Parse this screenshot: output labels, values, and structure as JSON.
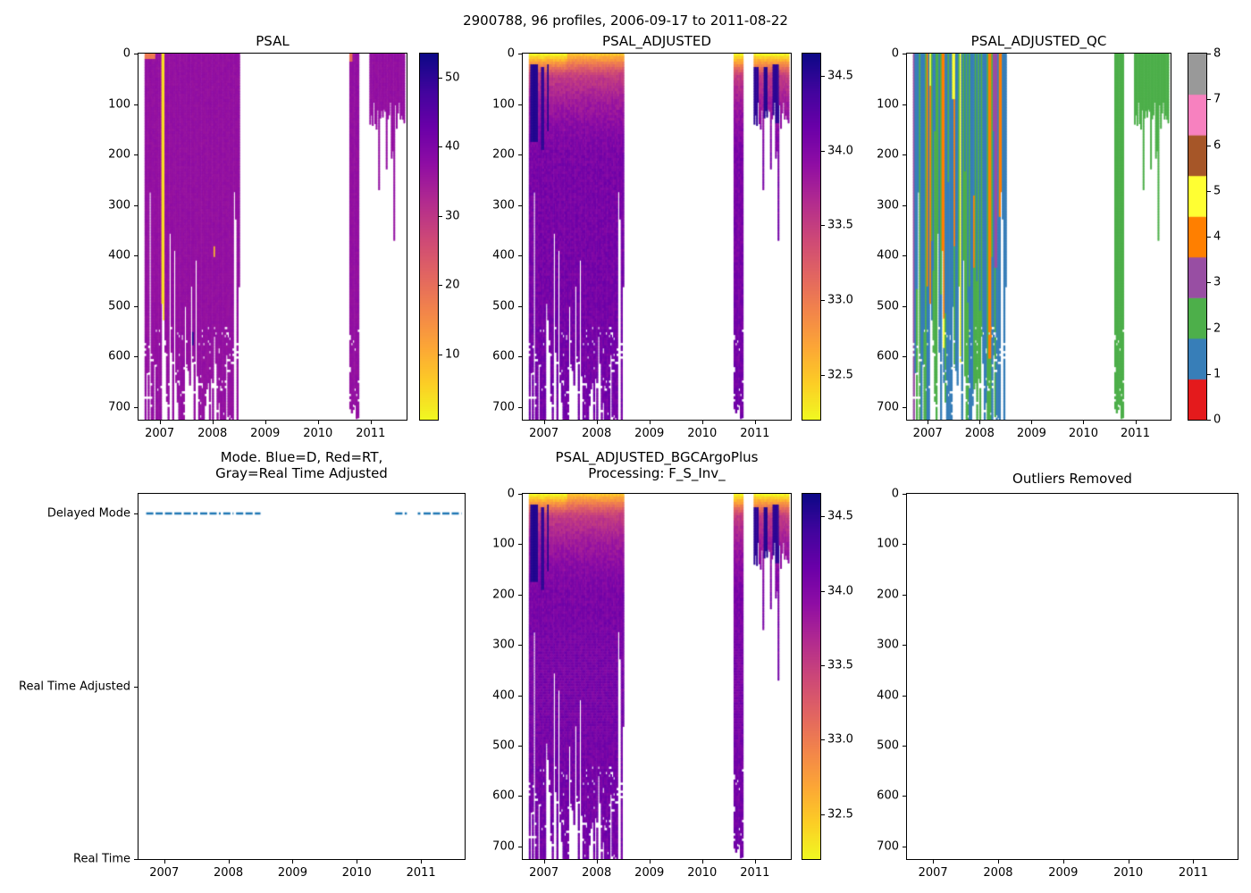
{
  "figure": {
    "suptitle": "2900788, 96 profiles, 2006-09-17 to 2011-08-22",
    "background": "#ffffff",
    "text_color": "#000000"
  },
  "colormaps": {
    "plasma": [
      "#0d0887",
      "#41049d",
      "#6a00a8",
      "#8f0da4",
      "#b12a90",
      "#cc4778",
      "#e16462",
      "#f2844b",
      "#fca636",
      "#fcce25",
      "#f0f921"
    ],
    "qc_flags": [
      "#e41a1c",
      "#377eb8",
      "#4daf4a",
      "#984ea3",
      "#ff7f00",
      "#ffff33",
      "#a65628",
      "#f781bf",
      "#999999"
    ]
  },
  "axes_common": {
    "xlim": [
      2006.6,
      2011.68
    ],
    "x_ticks": [
      "2007",
      "2008",
      "2009",
      "2010",
      "2011"
    ],
    "x_tick_values": [
      2007,
      2008,
      2009,
      2010,
      2011
    ],
    "depth_lim": [
      0,
      725
    ],
    "depth_ticks": [
      0,
      100,
      200,
      300,
      400,
      500,
      600,
      700
    ],
    "grid": false
  },
  "profile_clusters": [
    {
      "t_start": 2006.72,
      "t_end": 2008.52,
      "count": 62,
      "coverage": "full_ragged"
    },
    {
      "t_start": 2010.6,
      "t_end": 2010.78,
      "count": 6,
      "coverage": "full"
    },
    {
      "t_start": 2010.98,
      "t_end": 2011.65,
      "count": 28,
      "coverage": "shallow"
    }
  ],
  "chart_data": [
    {
      "id": "psal",
      "type": "heatmap",
      "title": "PSAL",
      "ylabel_unit": "depth",
      "colorbar": {
        "vmin": 0.5,
        "vmax": 53.5,
        "ticks": [
          10,
          20,
          30,
          40,
          50
        ],
        "format": "int",
        "colormap": "plasma_r"
      },
      "value_model": {
        "base": 36.9,
        "noise": 0.7
      },
      "anomalies": [
        {
          "t0": 2007.03,
          "t1": 2007.09,
          "d0": 0,
          "d1": 725,
          "value": 4
        },
        {
          "t0": 2007.19,
          "t1": 2007.23,
          "d0": 640,
          "d1": 725,
          "value": 7
        },
        {
          "t0": 2006.72,
          "t1": 2006.92,
          "d0": 0,
          "d1": 10,
          "value": 18
        },
        {
          "t0": 2007.6,
          "t1": 2007.64,
          "d0": 548,
          "d1": 576,
          "value": 52
        },
        {
          "t0": 2008.02,
          "t1": 2008.06,
          "d0": 378,
          "d1": 402,
          "value": 8
        },
        {
          "t0": 2010.6,
          "t1": 2010.66,
          "d0": 0,
          "d1": 12,
          "value": 20
        }
      ]
    },
    {
      "id": "psal_adjusted",
      "type": "heatmap",
      "title": "PSAL_ADJUSTED",
      "colorbar": {
        "vmin": 32.2,
        "vmax": 34.65,
        "ticks": [
          32.5,
          33.0,
          33.5,
          34.0,
          34.5
        ],
        "format": "1dp",
        "colormap": "plasma_r"
      },
      "value_model": {
        "profile_points": [
          [
            0,
            32.55
          ],
          [
            15,
            32.95
          ],
          [
            40,
            33.5
          ],
          [
            90,
            33.78
          ],
          [
            140,
            33.95
          ],
          [
            200,
            34.05
          ],
          [
            725,
            34.1
          ]
        ],
        "noise": 0.09,
        "fresh_periods": [
          [
            2006.72,
            2007.45
          ],
          [
            2010.6,
            2011.68
          ]
        ],
        "fresh_surface_delta": -0.3,
        "fresh_depth": 40
      },
      "anomalies": [
        {
          "t0": 2006.76,
          "t1": 2006.88,
          "d0": 18,
          "d1": 170,
          "value": 34.55
        },
        {
          "t0": 2006.94,
          "t1": 2007.0,
          "d0": 25,
          "d1": 190,
          "value": 34.5
        },
        {
          "t0": 2007.06,
          "t1": 2007.1,
          "d0": 20,
          "d1": 150,
          "value": 34.55
        },
        {
          "t0": 2010.99,
          "t1": 2011.08,
          "d0": 22,
          "d1": 140,
          "value": 34.5
        },
        {
          "t0": 2011.18,
          "t1": 2011.24,
          "d0": 25,
          "d1": 130,
          "value": 34.55
        },
        {
          "t0": 2011.34,
          "t1": 2011.47,
          "d0": 20,
          "d1": 135,
          "value": 34.5
        }
      ]
    },
    {
      "id": "psal_adjusted_qc",
      "type": "heatmap_flags",
      "title": "PSAL_ADJUSTED_QC",
      "colorbar": {
        "vmin": 0,
        "vmax": 8,
        "ticks": [
          0,
          1,
          2,
          3,
          4,
          5,
          6,
          7,
          8
        ],
        "format": "int",
        "colormap": "qc_flags"
      },
      "flag_model": {
        "base_flag_main": 1,
        "green_fraction": 0.28,
        "base_flag_2010": 2,
        "base_flag_2011": 2
      },
      "overrides": [
        {
          "t0": 2006.72,
          "t1": 2006.75,
          "d0": 0,
          "d1": 725,
          "flag": 3
        },
        {
          "t0": 2006.97,
          "t1": 2007.01,
          "d0": 0,
          "d1": 460,
          "flag": 4
        },
        {
          "t0": 2007.04,
          "t1": 2007.08,
          "d0": 60,
          "d1": 725,
          "flag": 4
        },
        {
          "t0": 2007.04,
          "t1": 2007.08,
          "d0": 0,
          "d1": 60,
          "flag": 5
        },
        {
          "t0": 2007.28,
          "t1": 2007.32,
          "d0": 0,
          "d1": 520,
          "flag": 4
        },
        {
          "t0": 2007.48,
          "t1": 2007.52,
          "d0": 0,
          "d1": 90,
          "flag": 5
        },
        {
          "t0": 2007.5,
          "t1": 2007.54,
          "d0": 90,
          "d1": 380,
          "flag": 4
        },
        {
          "t0": 2007.88,
          "t1": 2007.92,
          "d0": 280,
          "d1": 420,
          "flag": 4
        },
        {
          "t0": 2008.18,
          "t1": 2008.22,
          "d0": 0,
          "d1": 600,
          "flag": 4
        },
        {
          "t0": 2008.3,
          "t1": 2008.34,
          "d0": 0,
          "d1": 420,
          "flag": 3
        },
        {
          "t0": 2008.38,
          "t1": 2008.42,
          "d0": 0,
          "d1": 320,
          "flag": 4
        }
      ]
    },
    {
      "id": "mode",
      "type": "categorical_line",
      "title_lines": [
        "Mode. Blue=D, Red=RT,",
        "Gray=Real Time Adjusted"
      ],
      "categories": [
        "Delayed Mode",
        "Real Time Adjusted",
        "Real Time"
      ],
      "series": [
        {
          "name": "mode",
          "category": "Delayed Mode",
          "color": "#1f77b4",
          "segments": [
            [
              2006.72,
              2007.52
            ],
            [
              2007.56,
              2007.88
            ],
            [
              2007.92,
              2008.08
            ],
            [
              2008.12,
              2008.5
            ],
            [
              2010.6,
              2010.78
            ],
            [
              2010.95,
              2010.99
            ],
            [
              2011.04,
              2011.63
            ]
          ]
        }
      ]
    },
    {
      "id": "bgc",
      "type": "heatmap",
      "title_lines": [
        "PSAL_ADJUSTED_BGCArgoPlus",
        "Processing: F_S_Inv_"
      ],
      "colorbar": {
        "vmin": 32.2,
        "vmax": 34.65,
        "ticks": [
          32.5,
          33.0,
          33.5,
          34.0,
          34.5
        ],
        "format": "1dp",
        "colormap": "plasma_r"
      },
      "value_model_ref": "psal_adjusted"
    },
    {
      "id": "outliers",
      "type": "empty",
      "title": "Outliers Removed"
    }
  ]
}
